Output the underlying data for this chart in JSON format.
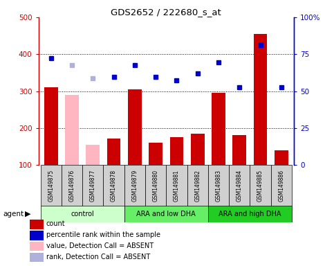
{
  "title": "GDS2652 / 222680_s_at",
  "samples": [
    "GSM149875",
    "GSM149876",
    "GSM149877",
    "GSM149878",
    "GSM149879",
    "GSM149880",
    "GSM149881",
    "GSM149882",
    "GSM149883",
    "GSM149884",
    "GSM149885",
    "GSM149886"
  ],
  "bar_values": [
    310,
    290,
    155,
    172,
    304,
    160,
    176,
    185,
    295,
    180,
    455,
    140
  ],
  "absent_bars": [
    false,
    true,
    true,
    false,
    false,
    false,
    false,
    false,
    false,
    false,
    false,
    false
  ],
  "rank_values": [
    390,
    370,
    335,
    338,
    370,
    338,
    330,
    348,
    378,
    310,
    425,
    310
  ],
  "rank_absent": [
    false,
    true,
    true,
    false,
    false,
    false,
    false,
    false,
    false,
    false,
    false,
    false
  ],
  "ylim_left": [
    100,
    500
  ],
  "yticks_left": [
    100,
    200,
    300,
    400,
    500
  ],
  "yticks_right": [
    0,
    25,
    50,
    75,
    100
  ],
  "ytick_labels_right": [
    "0",
    "25",
    "50",
    "75",
    "100%"
  ],
  "gridlines": [
    200,
    300,
    400
  ],
  "bar_color": "#cc0000",
  "bar_absent_color": "#ffb6c1",
  "rank_color": "#0000cc",
  "rank_absent_color": "#b0b0dd",
  "left_axis_color": "#cc0000",
  "right_axis_color": "#0000cc",
  "bar_width": 0.65,
  "rank_marker_size": 5,
  "groups": [
    {
      "label": "control",
      "start": 0,
      "end": 3,
      "color": "#ccffcc"
    },
    {
      "label": "ARA and low DHA",
      "start": 4,
      "end": 7,
      "color": "#66ee66"
    },
    {
      "label": "ARA and high DHA",
      "start": 8,
      "end": 11,
      "color": "#22cc22"
    }
  ],
  "sample_box_color": "#d0d0d0",
  "legend_items": [
    {
      "label": "count",
      "color": "#cc0000"
    },
    {
      "label": "percentile rank within the sample",
      "color": "#0000cc"
    },
    {
      "label": "value, Detection Call = ABSENT",
      "color": "#ffb6c1"
    },
    {
      "label": "rank, Detection Call = ABSENT",
      "color": "#b0b0dd"
    }
  ]
}
